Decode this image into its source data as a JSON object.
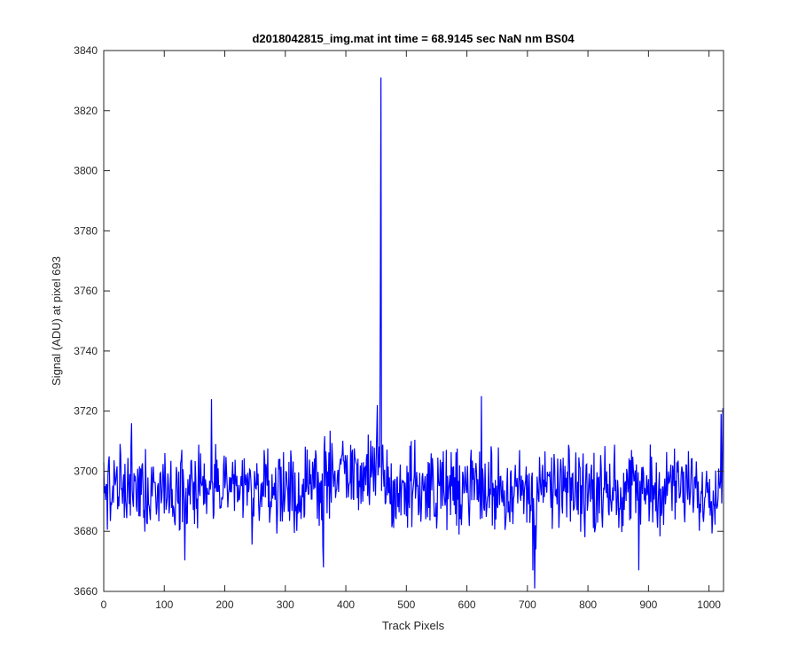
{
  "chart_data": {
    "type": "line",
    "title": "d2018042815_img.mat int time = 68.9145 sec  NaN nm BS04",
    "xlabel": "Track Pixels",
    "ylabel": "Signal (ADU) at pixel 693",
    "xlim": [
      0,
      1024
    ],
    "ylim": [
      3660,
      3840
    ],
    "xticks": [
      0,
      100,
      200,
      300,
      400,
      500,
      600,
      700,
      800,
      900,
      1000
    ],
    "yticks": [
      3660,
      3680,
      3700,
      3720,
      3740,
      3760,
      3780,
      3800,
      3820,
      3840
    ],
    "grid": false,
    "series": [
      {
        "color": "#0000ff",
        "n_points": 1024,
        "baseline": 3694,
        "noise_amplitude": 10,
        "features": [
          {
            "x": 458,
            "y": 3831
          },
          {
            "x": 457,
            "y": 3757
          },
          {
            "x": 178,
            "y": 3724
          },
          {
            "x": 624,
            "y": 3725
          },
          {
            "x": 709,
            "y": 3667
          },
          {
            "x": 712,
            "y": 3661
          },
          {
            "x": 363,
            "y": 3668
          },
          {
            "x": 884,
            "y": 3667
          },
          {
            "x": 1020,
            "y": 3719
          },
          {
            "x": 1023,
            "y": 3721
          }
        ]
      }
    ]
  }
}
